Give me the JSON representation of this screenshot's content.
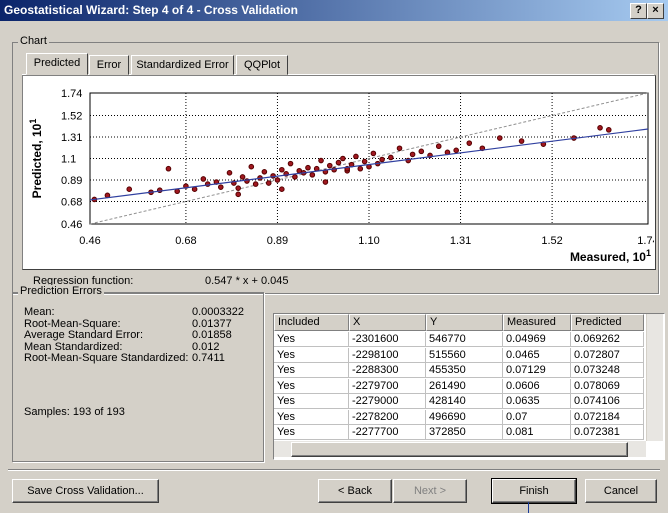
{
  "window": {
    "title": "Geostatistical Wizard: Step 4 of 4 - Cross Validation",
    "help_button": "?",
    "close_button": "×"
  },
  "chart_group": {
    "label": "Chart",
    "tabs": [
      "Predicted",
      "Error",
      "Standardized Error",
      "QQPlot"
    ],
    "active_tab": 0,
    "regression_label": "Regression function:",
    "regression_function": "0.547 * x + 0.045"
  },
  "chart_data": {
    "type": "scatter",
    "ylabel": "Predicted, 10",
    "ylabel_exponent": "1",
    "xlabel": "Measured, 10",
    "xlabel_exponent": "1",
    "xlim": [
      0.46,
      1.74
    ],
    "ylim": [
      0.46,
      1.74
    ],
    "xticks": [
      0.46,
      0.68,
      0.89,
      {
        "value": 1.1,
        "label": "1.10"
      },
      1.31,
      1.52,
      1.74
    ],
    "yticks": [
      0.46,
      0.68,
      0.89,
      1.1,
      1.31,
      1.52,
      1.74
    ],
    "grid": true,
    "series": [
      {
        "color": "#a01820",
        "x": [
          0.47,
          0.5,
          0.55,
          0.6,
          0.62,
          0.64,
          0.66,
          0.68,
          0.7,
          0.72,
          0.73,
          0.75,
          0.76,
          0.78,
          0.79,
          0.8,
          0.81,
          0.82,
          0.83,
          0.84,
          0.85,
          0.86,
          0.87,
          0.88,
          0.89,
          0.9,
          0.91,
          0.92,
          0.93,
          0.94,
          0.95,
          0.96,
          0.97,
          0.98,
          0.99,
          1.0,
          1.01,
          1.02,
          1.03,
          1.04,
          1.05,
          1.06,
          1.07,
          1.08,
          1.09,
          1.1,
          1.11,
          1.12,
          1.13,
          1.15,
          1.17,
          1.19,
          1.2,
          1.22,
          1.24,
          1.26,
          1.28,
          1.3,
          1.33,
          1.36,
          1.4,
          1.45,
          1.5,
          1.57,
          1.63,
          1.65,
          0.8,
          0.9,
          1.0,
          1.05
        ],
        "y": [
          0.7,
          0.74,
          0.8,
          0.77,
          0.79,
          1.0,
          0.78,
          0.83,
          0.8,
          0.9,
          0.85,
          0.87,
          0.82,
          0.96,
          0.86,
          0.81,
          0.92,
          0.88,
          1.02,
          0.85,
          0.91,
          0.97,
          0.86,
          0.93,
          0.89,
          0.99,
          0.95,
          1.05,
          0.92,
          0.98,
          0.96,
          1.01,
          0.94,
          1.0,
          1.08,
          0.97,
          1.03,
          0.99,
          1.06,
          1.1,
          0.98,
          1.04,
          1.12,
          1.0,
          1.07,
          1.02,
          1.15,
          1.05,
          1.09,
          1.11,
          1.2,
          1.08,
          1.14,
          1.17,
          1.13,
          1.22,
          1.16,
          1.18,
          1.25,
          1.2,
          1.3,
          1.27,
          1.24,
          1.3,
          1.4,
          1.38,
          0.75,
          0.8,
          0.87,
          1.0
        ]
      }
    ],
    "fit_line": {
      "color": "#3040a0",
      "x": [
        0.46,
        1.74
      ],
      "y": [
        0.695,
        1.388
      ]
    },
    "reference_line": {
      "color": "#909090",
      "x": [
        0.46,
        1.74
      ],
      "y": [
        0.46,
        1.74
      ]
    }
  },
  "prediction_errors": {
    "label": "Prediction Errors",
    "stats": [
      [
        "Mean:",
        "0.0003322"
      ],
      [
        "Root-Mean-Square:",
        "0.01377"
      ],
      [
        "Average Standard Error:",
        "0.01858"
      ],
      [
        "Mean Standardized:",
        "0.012"
      ],
      [
        "Root-Mean-Square Standardized:",
        "0.7411"
      ]
    ],
    "samples": "Samples: 193 of 193"
  },
  "table": {
    "columns": [
      "Included",
      "X",
      "Y",
      "Measured",
      "Predicted"
    ],
    "rows": [
      [
        "Yes",
        "-2301600",
        "546770",
        "0.04969",
        "0.069262"
      ],
      [
        "Yes",
        "-2298100",
        "515560",
        "0.0465",
        "0.072807"
      ],
      [
        "Yes",
        "-2288300",
        "455350",
        "0.07129",
        "0.073248"
      ],
      [
        "Yes",
        "-2279700",
        "261490",
        "0.0606",
        "0.078069"
      ],
      [
        "Yes",
        "-2279000",
        "428140",
        "0.0635",
        "0.074106"
      ],
      [
        "Yes",
        "-2278200",
        "496690",
        "0.07",
        "0.072184"
      ],
      [
        "Yes",
        "-2277700",
        "372850",
        "0.081",
        "0.072381"
      ]
    ]
  },
  "buttons": {
    "save": "Save Cross Validation...",
    "back": "< Back",
    "next": "Next >",
    "finish": "Finish",
    "cancel": "Cancel"
  }
}
